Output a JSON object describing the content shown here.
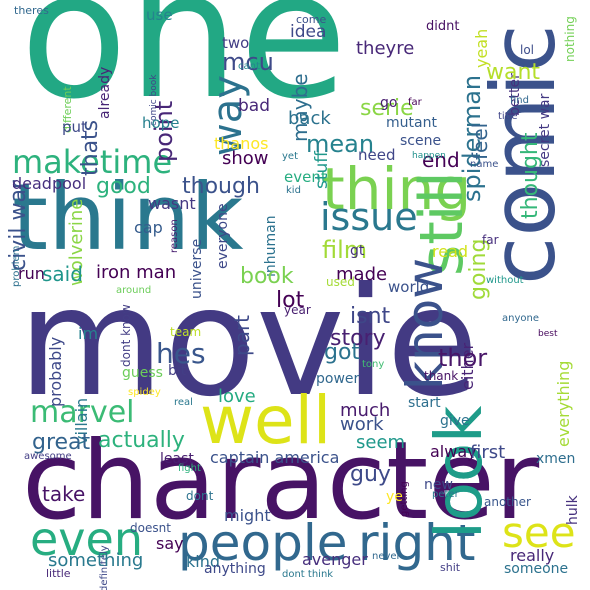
{
  "words": [
    {
      "text": "movie",
      "color": "#433a83"
    },
    {
      "text": "one",
      "color": "#22a884"
    },
    {
      "text": "character",
      "color": "#471365"
    },
    {
      "text": "think",
      "color": "#2a788e"
    },
    {
      "text": "comic",
      "color": "#3b528b"
    },
    {
      "text": "thing",
      "color": "#7ad151"
    },
    {
      "text": "people",
      "color": "#31688e"
    },
    {
      "text": "right",
      "color": "#31688e"
    },
    {
      "text": "look",
      "color": "#1e9c89"
    },
    {
      "text": "well",
      "color": "#dde318"
    },
    {
      "text": "still",
      "color": "#5ec962"
    },
    {
      "text": "issue",
      "color": "#2a788e"
    },
    {
      "text": "even",
      "color": "#27ad81"
    },
    {
      "text": "see",
      "color": "#dde318"
    },
    {
      "text": "maketime",
      "color": "#2db27d"
    },
    {
      "text": "way",
      "color": "#2c728e"
    },
    {
      "text": "marvel",
      "color": "#3bbb75"
    },
    {
      "text": "know",
      "color": "#3b528b"
    },
    {
      "text": "look",
      "color": "#1e9c89"
    },
    {
      "text": "point",
      "color": "#482777"
    },
    {
      "text": "mcu",
      "color": "#3e4a89"
    },
    {
      "text": "two",
      "color": "#433e85"
    },
    {
      "text": "already",
      "color": "#482576"
    },
    {
      "text": "thats",
      "color": "#3b528b"
    },
    {
      "text": "civil war",
      "color": "#3b528b"
    },
    {
      "text": "different",
      "color": "#6ece58"
    },
    {
      "text": "theres",
      "color": "#31688e"
    },
    {
      "text": "use",
      "color": "#25838e"
    },
    {
      "text": "comic book",
      "color": "#404688"
    },
    {
      "text": "cant",
      "color": "#25858e"
    },
    {
      "text": "idea",
      "color": "#3e4989"
    },
    {
      "text": "come",
      "color": "#3b528b"
    },
    {
      "text": "theyre",
      "color": "#482878"
    },
    {
      "text": "didnt",
      "color": "#471063"
    },
    {
      "text": "lol",
      "color": "#3d4d8a"
    },
    {
      "text": "nothing",
      "color": "#73d056"
    },
    {
      "text": "better",
      "color": "#46327e"
    },
    {
      "text": "yeah",
      "color": "#c2df23"
    },
    {
      "text": "want",
      "color": "#b5de2b"
    },
    {
      "text": "spiderman",
      "color": "#2c728e"
    },
    {
      "text": "secret war",
      "color": "#443983"
    },
    {
      "text": "thought",
      "color": "#35b779"
    },
    {
      "text": "feel",
      "color": "#33638d"
    },
    {
      "text": "serie",
      "color": "#8bd646"
    },
    {
      "text": "maybe",
      "color": "#2e6e8e"
    },
    {
      "text": "go",
      "color": "#481d6f"
    },
    {
      "text": "far",
      "color": "#440154"
    },
    {
      "text": "find",
      "color": "#31688e"
    },
    {
      "text": "mutant",
      "color": "#355f8d"
    },
    {
      "text": "end",
      "color": "#440154"
    },
    {
      "text": "bad",
      "color": "#482878"
    },
    {
      "text": "hope",
      "color": "#27808e"
    },
    {
      "text": "put",
      "color": "#3e4989"
    },
    {
      "text": "back",
      "color": "#2c728e"
    },
    {
      "text": "mean",
      "color": "#26828e"
    },
    {
      "text": "need",
      "color": "#404688"
    },
    {
      "text": "scene",
      "color": "#3b528b"
    },
    {
      "text": "happen",
      "color": "#21918c"
    },
    {
      "text": "title",
      "color": "#404688"
    },
    {
      "text": "name",
      "color": "#3b528b"
    },
    {
      "text": "thanos",
      "color": "#fde725"
    },
    {
      "text": "yet",
      "color": "#2a788e"
    },
    {
      "text": "show",
      "color": "#440154"
    },
    {
      "text": "event",
      "color": "#27ad81"
    },
    {
      "text": "stuff",
      "color": "#1f988b"
    },
    {
      "text": "deadpool",
      "color": "#46307e"
    },
    {
      "text": "good",
      "color": "#2db27d"
    },
    {
      "text": "though",
      "color": "#3b528b"
    },
    {
      "text": "wasnt",
      "color": "#443983"
    },
    {
      "text": "wolverine",
      "color": "#8bd646"
    },
    {
      "text": "kid",
      "color": "#2c728e"
    },
    {
      "text": "reason",
      "color": "#481f70"
    },
    {
      "text": "cap",
      "color": "#365c8d"
    },
    {
      "text": "universe",
      "color": "#3b528b"
    },
    {
      "text": "everyone",
      "color": "#3e4989"
    },
    {
      "text": "inhuman",
      "color": "#2c728e"
    },
    {
      "text": "film",
      "color": "#a2da37"
    },
    {
      "text": "gt",
      "color": "#46327e"
    },
    {
      "text": "read",
      "color": "#d2e21b"
    },
    {
      "text": "going",
      "color": "#a0da39"
    },
    {
      "text": "far",
      "color": "#472f7d"
    },
    {
      "text": "problem",
      "color": "#2d708e"
    },
    {
      "text": "run",
      "color": "#440154"
    },
    {
      "text": "said",
      "color": "#1f958b"
    },
    {
      "text": "iron man",
      "color": "#440154"
    },
    {
      "text": "book",
      "color": "#7ad151"
    },
    {
      "text": "made",
      "color": "#440154"
    },
    {
      "text": "world",
      "color": "#3b528b"
    },
    {
      "text": "without",
      "color": "#1f988b"
    },
    {
      "text": "around",
      "color": "#6ccd5a"
    },
    {
      "text": "used",
      "color": "#a5db36"
    },
    {
      "text": "lot",
      "color": "#440154"
    },
    {
      "text": "year",
      "color": "#481f70"
    },
    {
      "text": "team",
      "color": "#bddf26"
    },
    {
      "text": "best",
      "color": "#46085c"
    },
    {
      "text": "im",
      "color": "#26828e"
    },
    {
      "text": "isnt",
      "color": "#3f4788"
    },
    {
      "text": "anyone",
      "color": "#31688e"
    },
    {
      "text": "dont know",
      "color": "#433e85"
    },
    {
      "text": "hes",
      "color": "#39568c"
    },
    {
      "text": "part",
      "color": "#3e4989"
    },
    {
      "text": "story",
      "color": "#482071"
    },
    {
      "text": "either",
      "color": "#482475"
    },
    {
      "text": "got",
      "color": "#2c728e"
    },
    {
      "text": "tony",
      "color": "#40bd72"
    },
    {
      "text": "thor",
      "color": "#481668"
    },
    {
      "text": "probably",
      "color": "#3e4989"
    },
    {
      "text": "villain",
      "color": "#2a788e"
    },
    {
      "text": "everything",
      "color": "#a5db36"
    },
    {
      "text": "power",
      "color": "#31688e"
    },
    {
      "text": "thank",
      "color": "#471365"
    },
    {
      "text": "spidey",
      "color": "#fde725"
    },
    {
      "text": "guess",
      "color": "#6ccd5a"
    },
    {
      "text": "bit",
      "color": "#433e85"
    },
    {
      "text": "real",
      "color": "#2a788e"
    },
    {
      "text": "much",
      "color": "#481b6d"
    },
    {
      "text": "love",
      "color": "#25ab82"
    },
    {
      "text": "start",
      "color": "#2e6f8e"
    },
    {
      "text": "give",
      "color": "#2c728e"
    },
    {
      "text": "work",
      "color": "#3b528b"
    },
    {
      "text": "seem",
      "color": "#1f988b"
    },
    {
      "text": "actually",
      "color": "#2db27d"
    },
    {
      "text": "great",
      "color": "#33638d"
    },
    {
      "text": "alway",
      "color": "#440154"
    },
    {
      "text": "first",
      "color": "#3e4989"
    },
    {
      "text": "awesome",
      "color": "#433e85"
    },
    {
      "text": "least",
      "color": "#481f70"
    },
    {
      "text": "fight",
      "color": "#2db27d"
    },
    {
      "text": "captain america",
      "color": "#3b528b"
    },
    {
      "text": "xmen",
      "color": "#2e6e8e"
    },
    {
      "text": "guy",
      "color": "#3e4a89"
    },
    {
      "text": "new",
      "color": "#3e4989"
    },
    {
      "text": "peter",
      "color": "#2a788e"
    },
    {
      "text": "take",
      "color": "#481467"
    },
    {
      "text": "dont",
      "color": "#2c728e"
    },
    {
      "text": "might",
      "color": "#3b528b"
    },
    {
      "text": "getting",
      "color": "#440154"
    },
    {
      "text": "ye",
      "color": "#fde725"
    },
    {
      "text": "another",
      "color": "#39568c"
    },
    {
      "text": "hulk",
      "color": "#46317e"
    },
    {
      "text": "doesnt",
      "color": "#3b528b"
    },
    {
      "text": "definitely",
      "color": "#3e4989"
    },
    {
      "text": "say",
      "color": "#440154"
    },
    {
      "text": "kind",
      "color": "#2c728e"
    },
    {
      "text": "avenger",
      "color": "#472f7d"
    },
    {
      "text": "really",
      "color": "#482878"
    },
    {
      "text": "something",
      "color": "#29798e"
    },
    {
      "text": "anything",
      "color": "#3e4989"
    },
    {
      "text": "never",
      "color": "#31688e"
    },
    {
      "text": "shit",
      "color": "#433e85"
    },
    {
      "text": "someone",
      "color": "#2c728e"
    },
    {
      "text": "little",
      "color": "#482878"
    },
    {
      "text": "dont think",
      "color": "#2a788e"
    }
  ]
}
